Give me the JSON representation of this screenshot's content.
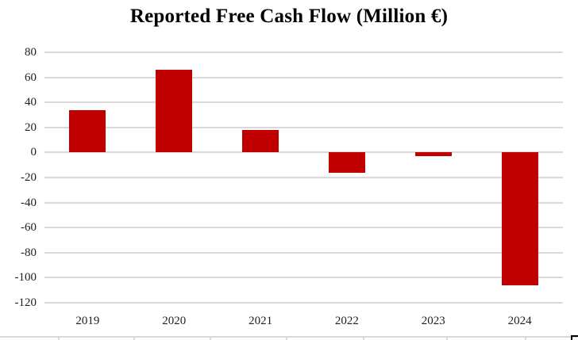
{
  "chart_data": {
    "type": "bar",
    "title": "Reported Free Cash Flow (Million €)",
    "categories": [
      "2019",
      "2020",
      "2021",
      "2022",
      "2023",
      "2024"
    ],
    "values": [
      34,
      66,
      18,
      -16,
      -3,
      -106
    ],
    "xlabel": "",
    "ylabel": "",
    "ylim": [
      -120,
      80
    ],
    "ytick_step": 20,
    "ytick_labels": [
      "80",
      "60",
      "40",
      "20",
      "0",
      "-20",
      "-40",
      "-60",
      "-80",
      "-100",
      "-120"
    ],
    "grid": true,
    "legend": false,
    "bar_color": "#C00000",
    "gridline_color": "#D9D9D9",
    "label_color": "#1f1f1f",
    "title_color": "#000000"
  },
  "decor": {
    "bottom_fragment_line_color": "#D9D9D9",
    "bottom_fragment_ticks_x": [
      73,
      168,
      264,
      360,
      457,
      562,
      661
    ],
    "corner_mark_color": "#000000"
  }
}
